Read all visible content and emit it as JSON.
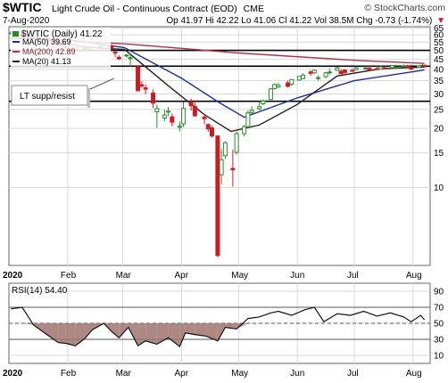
{
  "header": {
    "symbol": "$WTIC",
    "description": "Light Crude Oil - Continuous Contract (EOD)",
    "exchange": "CME",
    "copyright": "© StockCharts.com",
    "date": "7-Aug-2020",
    "quote": "Op 41.97  Hi 42.22  Lo 41.06  Cl 41.22  Vol 38.5M  Chg -0.73 (-1.74%)",
    "quote_arrow": "▼"
  },
  "legend": {
    "price": "$WTIC (Daily) 41.22",
    "ma50": "MA(50) 39.69",
    "ma200": "MA(200) 42.89",
    "ma20": "MA(20) 41.13"
  },
  "annotation": "LT supp/resist",
  "rsi_legend": "RSI(14) 54.40",
  "colors": {
    "up": "#2a8a2a",
    "down": "#cc1b22",
    "ma50": "#1f2f99",
    "ma200": "#b0334a",
    "ma20": "#222222",
    "rsi_fill": "#a0746f",
    "grid": "#d9d9d9",
    "hline": "#000000"
  },
  "chart_data": [
    {
      "type": "candlestick",
      "title": "$WTIC (Daily)",
      "x_tick_labels": [
        "2020",
        "Feb",
        "Mar",
        "Apr",
        "May",
        "Jun",
        "Jul",
        "Aug"
      ],
      "y_tick_labels": [
        "65",
        "60",
        "55",
        "50",
        "45",
        "40",
        "35",
        "30",
        "25",
        "20",
        "15",
        "10"
      ],
      "y_scale": "log",
      "ylim": [
        4,
        66
      ],
      "horizontal_lines": [
        50,
        41.5,
        27.5
      ],
      "series": [
        {
          "name": "MA(50)",
          "x": [
            "2020-01-02",
            "2020-02-05",
            "2020-03-02",
            "2020-04-01",
            "2020-04-21",
            "2020-05-04",
            "2020-06-01",
            "2020-07-01",
            "2020-08-07"
          ],
          "values": [
            58.5,
            56.0,
            51.6,
            36.0,
            27.0,
            22.8,
            28.6,
            35.0,
            39.7
          ]
        },
        {
          "name": "MA(200)",
          "x": [
            "2020-01-02",
            "2020-03-02",
            "2020-05-01",
            "2020-07-01",
            "2020-08-07"
          ],
          "values": [
            57.6,
            54.0,
            48.5,
            44.5,
            42.9
          ]
        },
        {
          "name": "MA(20)",
          "x": [
            "2020-01-02",
            "2020-02-10",
            "2020-03-02",
            "2020-03-25",
            "2020-04-13",
            "2020-04-27",
            "2020-05-12",
            "2020-06-01",
            "2020-06-22",
            "2020-07-15",
            "2020-08-07"
          ],
          "values": [
            61.0,
            52.0,
            50.5,
            33.0,
            23.5,
            19.3,
            20.8,
            26.5,
            37.0,
            40.3,
            41.1
          ]
        }
      ],
      "ohlc": {
        "x": [
          "2020-01-02",
          "2020-01-06",
          "2020-01-08",
          "2020-01-10",
          "2020-01-14",
          "2020-01-16",
          "2020-01-21",
          "2020-01-23",
          "2020-01-27",
          "2020-01-29",
          "2020-01-31",
          "2020-02-04",
          "2020-02-06",
          "2020-02-10",
          "2020-02-12",
          "2020-02-14",
          "2020-02-18",
          "2020-02-20",
          "2020-02-24",
          "2020-02-26",
          "2020-02-28",
          "2020-03-03",
          "2020-03-05",
          "2020-03-09",
          "2020-03-11",
          "2020-03-13",
          "2020-03-17",
          "2020-03-19",
          "2020-03-23",
          "2020-03-25",
          "2020-03-27",
          "2020-03-31",
          "2020-04-02",
          "2020-04-06",
          "2020-04-08",
          "2020-04-13",
          "2020-04-15",
          "2020-04-17",
          "2020-04-20",
          "2020-04-22",
          "2020-04-24",
          "2020-04-28",
          "2020-04-30",
          "2020-05-04",
          "2020-05-06",
          "2020-05-08",
          "2020-05-12",
          "2020-05-14",
          "2020-05-18",
          "2020-05-20",
          "2020-05-22",
          "2020-05-27",
          "2020-05-29",
          "2020-06-02",
          "2020-06-04",
          "2020-06-08",
          "2020-06-10",
          "2020-06-12",
          "2020-06-16",
          "2020-06-18",
          "2020-06-22",
          "2020-06-24",
          "2020-06-26",
          "2020-06-30",
          "2020-07-02",
          "2020-07-07",
          "2020-07-09",
          "2020-07-13",
          "2020-07-15",
          "2020-07-17",
          "2020-07-21",
          "2020-07-23",
          "2020-07-27",
          "2020-07-29",
          "2020-07-31",
          "2020-08-04",
          "2020-08-06",
          "2020-08-07"
        ],
        "open": [
          61.2,
          62.4,
          61.5,
          59.6,
          58.2,
          58.5,
          58.1,
          56.9,
          55.2,
          53.6,
          52.4,
          50.9,
          50.6,
          51.5,
          50.5,
          51.9,
          52.1,
          53.6,
          52.8,
          48.9,
          46.1,
          47.2,
          45.9,
          41.3,
          33.4,
          32.2,
          30.3,
          24.3,
          22.6,
          24.2,
          22.9,
          20.4,
          21.1,
          27.3,
          25.9,
          22.8,
          20.9,
          20.1,
          18.3,
          11.6,
          14.5,
          12.5,
          15.1,
          18.8,
          20.4,
          24.1,
          25.2,
          26.7,
          28.1,
          31.9,
          32.5,
          34.1,
          33.6,
          35.3,
          35.9,
          38.8,
          38.4,
          36.1,
          36.7,
          38.4,
          39.6,
          39.1,
          39.7,
          39.5,
          39.8,
          40.4,
          40.5,
          40.3,
          40.1,
          40.7,
          40.8,
          41.1,
          41.2,
          41.5,
          40.6,
          41.0,
          41.9,
          41.97
        ],
        "high": [
          62.8,
          63.8,
          62.9,
          60.2,
          59.2,
          59.1,
          58.6,
          57.4,
          55.8,
          54.7,
          53.1,
          51.7,
          51.8,
          52.0,
          51.9,
          53.3,
          53.7,
          54.2,
          53.4,
          49.6,
          47.2,
          47.9,
          47.6,
          42.0,
          34.8,
          33.5,
          31.6,
          26.4,
          24.9,
          25.7,
          23.8,
          21.7,
          27.3,
          28.4,
          27.1,
          23.6,
          21.2,
          20.6,
          18.4,
          15.7,
          17.2,
          15.6,
          19.3,
          20.8,
          24.7,
          25.9,
          27.3,
          28.1,
          32.1,
          33.9,
          34.2,
          35.0,
          35.6,
          36.8,
          38.2,
          39.6,
          39.6,
          37.3,
          38.9,
          40.3,
          41.3,
          40.1,
          40.1,
          40.4,
          41.5,
          41.6,
          41.9,
          41.7,
          41.9,
          41.4,
          41.9,
          42.3,
          42.4,
          42.2,
          42.3,
          42.0,
          42.9,
          42.22
        ],
        "low": [
          60.9,
          61.9,
          59.4,
          58.1,
          57.6,
          57.9,
          55.8,
          54.8,
          52.6,
          52.8,
          51.5,
          49.3,
          50.1,
          49.9,
          50.1,
          51.4,
          51.7,
          52.5,
          50.1,
          46.2,
          44.7,
          46.0,
          41.2,
          31.1,
          32.3,
          29.9,
          25.4,
          20.1,
          21.8,
          23.1,
          20.5,
          19.3,
          20.3,
          24.6,
          22.9,
          21.0,
          19.2,
          17.9,
          4.4,
          10.4,
          14.0,
          10.1,
          14.7,
          18.2,
          20.1,
          23.6,
          24.8,
          26.3,
          27.9,
          31.6,
          32.2,
          32.4,
          33.1,
          35.0,
          35.6,
          37.2,
          37.9,
          35.0,
          36.1,
          37.6,
          39.2,
          37.9,
          38.1,
          38.9,
          39.7,
          39.8,
          40.2,
          39.9,
          40.1,
          40.3,
          40.5,
          40.8,
          41.0,
          40.7,
          39.6,
          40.8,
          41.7,
          41.06
        ],
        "close": [
          61.3,
          62.7,
          59.7,
          59.1,
          58.3,
          58.6,
          56.9,
          55.6,
          53.2,
          53.4,
          51.6,
          50.2,
          50.9,
          49.6,
          51.2,
          52.1,
          52.4,
          53.3,
          51.4,
          48.7,
          45.3,
          47.3,
          45.9,
          31.1,
          32.9,
          31.7,
          26.9,
          25.2,
          23.4,
          24.5,
          21.5,
          20.5,
          25.3,
          26.1,
          23.2,
          22.4,
          19.9,
          18.3,
          4.5,
          13.8,
          16.9,
          12.3,
          18.8,
          20.4,
          24.0,
          24.7,
          25.8,
          27.6,
          31.8,
          33.5,
          33.2,
          32.8,
          35.5,
          36.8,
          37.4,
          38.2,
          39.6,
          36.3,
          38.4,
          38.8,
          40.7,
          38.0,
          38.5,
          39.3,
          40.7,
          40.6,
          39.6,
          40.1,
          41.2,
          40.6,
          41.9,
          41.1,
          41.6,
          41.3,
          40.3,
          41.7,
          41.95,
          41.22
        ]
      }
    },
    {
      "type": "line",
      "title": "RSI(14)",
      "x_tick_labels": [
        "2020",
        "Feb",
        "Mar",
        "Apr",
        "May",
        "Jun",
        "Jul",
        "Aug"
      ],
      "y_tick_labels": [
        "90",
        "70",
        "50",
        "30",
        "10"
      ],
      "ylim": [
        0,
        100
      ],
      "reference_lines": [
        70,
        50,
        30
      ],
      "series": [
        {
          "name": "RSI(14)",
          "x": [
            "2020-01-02",
            "2020-01-08",
            "2020-01-14",
            "2020-01-21",
            "2020-01-27",
            "2020-01-31",
            "2020-02-05",
            "2020-02-10",
            "2020-02-14",
            "2020-02-20",
            "2020-02-24",
            "2020-02-28",
            "2020-03-04",
            "2020-03-09",
            "2020-03-13",
            "2020-03-19",
            "2020-03-25",
            "2020-03-31",
            "2020-04-03",
            "2020-04-08",
            "2020-04-14",
            "2020-04-20",
            "2020-04-24",
            "2020-04-30",
            "2020-05-06",
            "2020-05-12",
            "2020-05-18",
            "2020-05-22",
            "2020-05-29",
            "2020-06-05",
            "2020-06-10",
            "2020-06-15",
            "2020-06-22",
            "2020-06-29",
            "2020-07-06",
            "2020-07-13",
            "2020-07-20",
            "2020-07-27",
            "2020-07-31",
            "2020-08-05",
            "2020-08-07"
          ],
          "values": [
            68,
            70,
            48,
            36,
            26,
            25,
            22,
            31,
            42,
            50,
            40,
            32,
            45,
            22,
            28,
            24,
            32,
            21,
            38,
            36,
            34,
            28,
            45,
            43,
            56,
            58,
            63,
            65,
            60,
            67,
            70,
            52,
            62,
            60,
            65,
            59,
            63,
            58,
            52,
            60,
            54.4
          ]
        }
      ]
    }
  ]
}
